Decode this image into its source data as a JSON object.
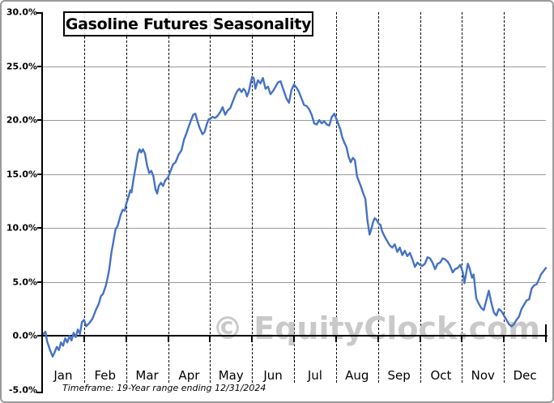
{
  "window": {
    "background": "#ffffff",
    "border_color": "#9a9a9a"
  },
  "chart_data": {
    "type": "line",
    "title": "Gasoline Futures Seasonality",
    "footnote": "Timeframe: 19-Year range ending 12/31/2024",
    "watermark": "© EquityClock.com",
    "xlabel": "",
    "ylabel": "",
    "x_categories": [
      "Jan",
      "Feb",
      "Mar",
      "Apr",
      "May",
      "Jun",
      "Jul",
      "Aug",
      "Sep",
      "Oct",
      "Nov",
      "Dec"
    ],
    "y_tick_labels": [
      "30.0%",
      "25.0%",
      "20.0%",
      "15.0%",
      "10.0%",
      "5.0%",
      "0.0%",
      "-5.0%"
    ],
    "y_tick_values": [
      30,
      25,
      20,
      15,
      10,
      5,
      0,
      -5
    ],
    "ylim": [
      -5,
      30
    ],
    "xlim_months": [
      0,
      12
    ],
    "grid": {
      "horizontal": "solid gray at 5% steps",
      "vertical": "dashed black at month starts",
      "zero_line": "solid black"
    },
    "legend_position": "none",
    "line_color": "#4472C4",
    "x_unit": "month fraction (0 = Jan 1, 12 = Dec 31)",
    "y_unit": "percent cumulative seasonal change",
    "series": [
      {
        "color": "#4472C4",
        "points": [
          [
            0.0,
            0.1
          ],
          [
            0.08,
            0.4
          ],
          [
            0.12,
            -0.5
          ],
          [
            0.18,
            -1.2
          ],
          [
            0.25,
            -1.9
          ],
          [
            0.3,
            -1.5
          ],
          [
            0.35,
            -1.0
          ],
          [
            0.4,
            -1.3
          ],
          [
            0.45,
            -0.6
          ],
          [
            0.5,
            -0.9
          ],
          [
            0.55,
            -0.2
          ],
          [
            0.6,
            -0.6
          ],
          [
            0.65,
            0.0
          ],
          [
            0.7,
            -0.4
          ],
          [
            0.75,
            0.3
          ],
          [
            0.8,
            -0.1
          ],
          [
            0.85,
            0.6
          ],
          [
            0.9,
            0.2
          ],
          [
            0.95,
            1.3
          ],
          [
            1.0,
            1.5
          ],
          [
            1.05,
            0.9
          ],
          [
            1.12,
            1.2
          ],
          [
            1.2,
            1.6
          ],
          [
            1.28,
            2.4
          ],
          [
            1.35,
            3.0
          ],
          [
            1.4,
            3.7
          ],
          [
            1.45,
            3.9
          ],
          [
            1.52,
            4.7
          ],
          [
            1.56,
            5.4
          ],
          [
            1.6,
            6.2
          ],
          [
            1.65,
            7.7
          ],
          [
            1.7,
            8.8
          ],
          [
            1.75,
            9.9
          ],
          [
            1.8,
            10.2
          ],
          [
            1.87,
            11.2
          ],
          [
            1.92,
            11.7
          ],
          [
            1.97,
            11.6
          ],
          [
            2.0,
            12.2
          ],
          [
            2.05,
            12.8
          ],
          [
            2.1,
            13.5
          ],
          [
            2.13,
            13.3
          ],
          [
            2.18,
            14.6
          ],
          [
            2.22,
            15.5
          ],
          [
            2.28,
            16.9
          ],
          [
            2.32,
            17.3
          ],
          [
            2.36,
            17.0
          ],
          [
            2.4,
            17.3
          ],
          [
            2.45,
            16.9
          ],
          [
            2.5,
            15.8
          ],
          [
            2.55,
            15.1
          ],
          [
            2.6,
            15.3
          ],
          [
            2.65,
            14.8
          ],
          [
            2.7,
            13.6
          ],
          [
            2.74,
            13.2
          ],
          [
            2.78,
            13.9
          ],
          [
            2.83,
            14.2
          ],
          [
            2.88,
            13.9
          ],
          [
            2.93,
            14.4
          ],
          [
            3.0,
            14.7
          ],
          [
            3.08,
            15.5
          ],
          [
            3.12,
            15.9
          ],
          [
            3.18,
            16.1
          ],
          [
            3.25,
            16.8
          ],
          [
            3.32,
            17.2
          ],
          [
            3.38,
            18.2
          ],
          [
            3.44,
            18.8
          ],
          [
            3.5,
            19.5
          ],
          [
            3.55,
            20.0
          ],
          [
            3.6,
            20.5
          ],
          [
            3.65,
            20.6
          ],
          [
            3.7,
            19.9
          ],
          [
            3.75,
            19.3
          ],
          [
            3.82,
            18.7
          ],
          [
            3.87,
            18.9
          ],
          [
            3.92,
            19.6
          ],
          [
            3.97,
            20.1
          ],
          [
            4.0,
            20.1
          ],
          [
            4.06,
            20.3
          ],
          [
            4.12,
            20.2
          ],
          [
            4.18,
            20.4
          ],
          [
            4.25,
            20.8
          ],
          [
            4.3,
            21.2
          ],
          [
            4.36,
            20.5
          ],
          [
            4.42,
            20.9
          ],
          [
            4.48,
            21.1
          ],
          [
            4.55,
            21.8
          ],
          [
            4.6,
            22.3
          ],
          [
            4.65,
            22.7
          ],
          [
            4.7,
            22.9
          ],
          [
            4.75,
            22.6
          ],
          [
            4.8,
            22.9
          ],
          [
            4.84,
            22.7
          ],
          [
            4.88,
            22.2
          ],
          [
            4.92,
            22.6
          ],
          [
            4.96,
            23.3
          ],
          [
            5.0,
            24.0
          ],
          [
            5.04,
            23.9
          ],
          [
            5.08,
            22.9
          ],
          [
            5.14,
            23.7
          ],
          [
            5.2,
            23.4
          ],
          [
            5.26,
            23.9
          ],
          [
            5.32,
            22.9
          ],
          [
            5.38,
            23.1
          ],
          [
            5.44,
            22.4
          ],
          [
            5.5,
            22.7
          ],
          [
            5.56,
            23.1
          ],
          [
            5.62,
            23.5
          ],
          [
            5.68,
            23.6
          ],
          [
            5.74,
            22.9
          ],
          [
            5.82,
            22.0
          ],
          [
            5.88,
            21.6
          ],
          [
            5.94,
            22.8
          ],
          [
            6.0,
            23.3
          ],
          [
            6.06,
            23.0
          ],
          [
            6.12,
            22.6
          ],
          [
            6.18,
            22.0
          ],
          [
            6.24,
            21.4
          ],
          [
            6.3,
            21.3
          ],
          [
            6.36,
            21.0
          ],
          [
            6.42,
            20.5
          ],
          [
            6.48,
            19.7
          ],
          [
            6.54,
            19.6
          ],
          [
            6.6,
            20.0
          ],
          [
            6.66,
            19.7
          ],
          [
            6.72,
            19.9
          ],
          [
            6.78,
            19.6
          ],
          [
            6.84,
            19.5
          ],
          [
            6.9,
            20.3
          ],
          [
            6.96,
            20.6
          ],
          [
            7.02,
            20.0
          ],
          [
            7.06,
            19.6
          ],
          [
            7.1,
            19.2
          ],
          [
            7.15,
            18.4
          ],
          [
            7.2,
            17.9
          ],
          [
            7.25,
            17.5
          ],
          [
            7.3,
            16.6
          ],
          [
            7.35,
            16.1
          ],
          [
            7.4,
            16.5
          ],
          [
            7.45,
            16.3
          ],
          [
            7.5,
            14.8
          ],
          [
            7.55,
            14.3
          ],
          [
            7.6,
            13.8
          ],
          [
            7.65,
            13.2
          ],
          [
            7.7,
            12.7
          ],
          [
            7.75,
            10.7
          ],
          [
            7.8,
            9.4
          ],
          [
            7.84,
            9.9
          ],
          [
            7.88,
            10.5
          ],
          [
            7.92,
            10.9
          ],
          [
            7.96,
            10.8
          ],
          [
            8.02,
            10.4
          ],
          [
            8.06,
            10.3
          ],
          [
            8.1,
            9.7
          ],
          [
            8.16,
            9.2
          ],
          [
            8.22,
            8.8
          ],
          [
            8.28,
            8.4
          ],
          [
            8.34,
            8.2
          ],
          [
            8.4,
            8.5
          ],
          [
            8.46,
            7.8
          ],
          [
            8.52,
            8.2
          ],
          [
            8.58,
            7.5
          ],
          [
            8.64,
            7.9
          ],
          [
            8.7,
            7.4
          ],
          [
            8.76,
            7.7
          ],
          [
            8.82,
            7.1
          ],
          [
            8.88,
            6.4
          ],
          [
            8.94,
            6.8
          ],
          [
            9.0,
            6.6
          ],
          [
            9.06,
            6.5
          ],
          [
            9.12,
            6.7
          ],
          [
            9.18,
            7.3
          ],
          [
            9.24,
            7.2
          ],
          [
            9.3,
            6.8
          ],
          [
            9.36,
            6.2
          ],
          [
            9.42,
            6.7
          ],
          [
            9.48,
            6.8
          ],
          [
            9.54,
            7.2
          ],
          [
            9.6,
            7.1
          ],
          [
            9.66,
            6.9
          ],
          [
            9.72,
            6.5
          ],
          [
            9.78,
            5.9
          ],
          [
            9.84,
            6.2
          ],
          [
            9.9,
            6.3
          ],
          [
            9.96,
            6.6
          ],
          [
            10.02,
            5.9
          ],
          [
            10.06,
            4.9
          ],
          [
            10.1,
            5.8
          ],
          [
            10.14,
            6.7
          ],
          [
            10.18,
            6.3
          ],
          [
            10.24,
            5.4
          ],
          [
            10.28,
            5.7
          ],
          [
            10.34,
            3.5
          ],
          [
            10.4,
            3.0
          ],
          [
            10.46,
            2.6
          ],
          [
            10.52,
            2.4
          ],
          [
            10.58,
            3.3
          ],
          [
            10.64,
            4.2
          ],
          [
            10.7,
            3.1
          ],
          [
            10.76,
            2.2
          ],
          [
            10.82,
            1.9
          ],
          [
            10.88,
            2.5
          ],
          [
            10.94,
            2.3
          ],
          [
            11.0,
            1.9
          ],
          [
            11.06,
            1.5
          ],
          [
            11.12,
            1.1
          ],
          [
            11.18,
            0.9
          ],
          [
            11.24,
            1.1
          ],
          [
            11.3,
            1.5
          ],
          [
            11.36,
            1.8
          ],
          [
            11.42,
            2.5
          ],
          [
            11.48,
            2.9
          ],
          [
            11.54,
            3.3
          ],
          [
            11.6,
            3.4
          ],
          [
            11.66,
            4.4
          ],
          [
            11.72,
            4.7
          ],
          [
            11.78,
            4.8
          ],
          [
            11.84,
            5.3
          ],
          [
            11.88,
            5.7
          ],
          [
            11.92,
            5.9
          ],
          [
            11.96,
            6.1
          ],
          [
            12.0,
            6.3
          ]
        ]
      }
    ]
  }
}
